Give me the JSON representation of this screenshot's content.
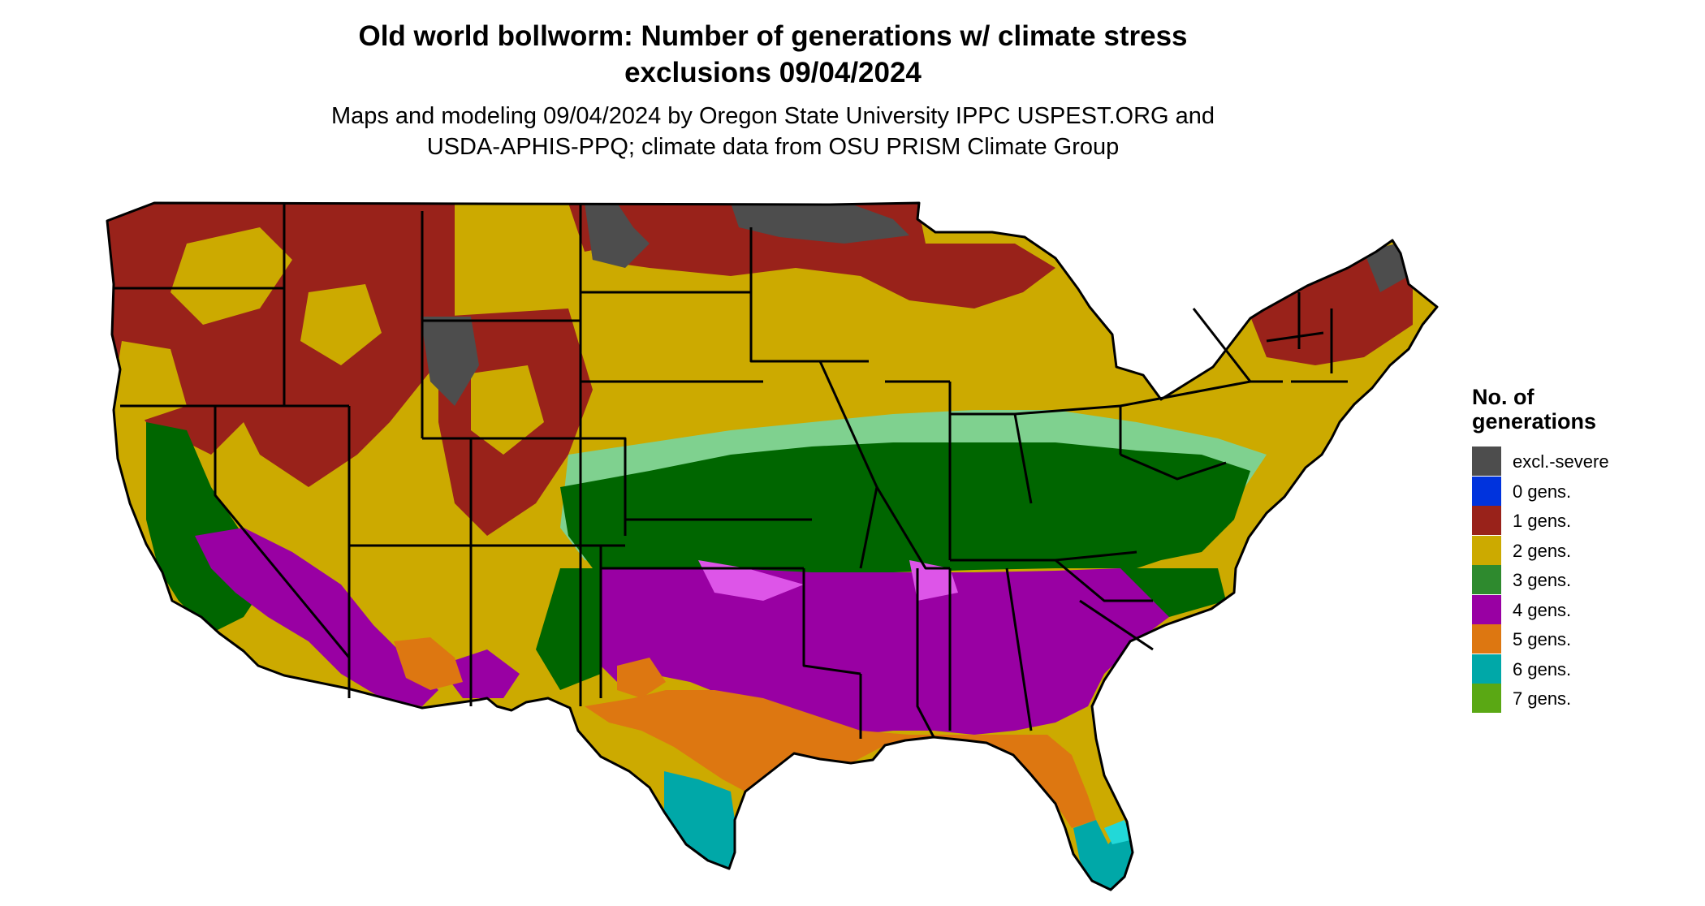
{
  "title": {
    "line1": "Old world bollworm: Number of generations w/ climate stress",
    "line2": "exclusions 09/04/2024"
  },
  "subtitle": {
    "line1": "Maps and modeling 09/04/2024 by Oregon State University IPPC USPEST.ORG and",
    "line2": "USDA-APHIS-PPQ; climate data from OSU PRISM Climate Group"
  },
  "legend": {
    "title_line1": "No. of",
    "title_line2": "generations",
    "items": [
      {
        "label": "excl.-severe",
        "color": "#4d4d4d"
      },
      {
        "label": "0 gens.",
        "color": "#0033dd"
      },
      {
        "label": "1 gens.",
        "color": "#99221a"
      },
      {
        "label": "2 gens.",
        "color": "#ccaa00"
      },
      {
        "label": "3 gens.",
        "color": "#2e8a2e"
      },
      {
        "label": "4 gens.",
        "color": "#9900a3"
      },
      {
        "label": "5 gens.",
        "color": "#dd7711"
      },
      {
        "label": "6 gens.",
        "color": "#00a8a8"
      },
      {
        "label": "7 gens.",
        "color": "#5aa814"
      }
    ]
  },
  "map_colors": {
    "excl_severe": "#4d4d4d",
    "gen1": "#99221a",
    "gen2": "#ccaa00",
    "gen3_dark": "#006600",
    "gen3_light": "#7fd18f",
    "gen4": "#9900a3",
    "gen4_light": "#dd55e8",
    "gen5": "#dd7711",
    "gen6": "#00a8a8",
    "gen6_light": "#22d8d8",
    "border": "#000000"
  }
}
